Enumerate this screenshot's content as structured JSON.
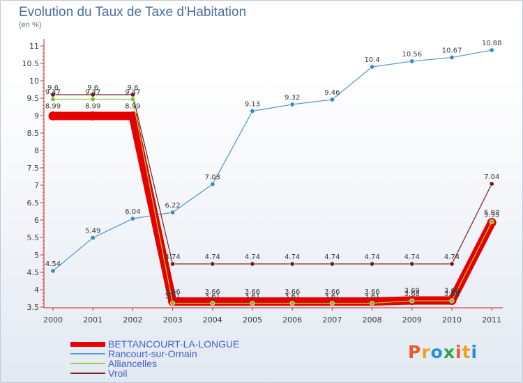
{
  "header": {
    "title": "Evolution du Taux de Taxe d'Habitation",
    "subtitle": "(en %)"
  },
  "brand": {
    "letters": [
      "P",
      "r",
      "o",
      "x",
      "i",
      "t",
      "i"
    ],
    "colors": [
      "#e85a2a",
      "#f0a01e",
      "#1e90d8",
      "#2aa84a",
      "#e85a2a",
      "#f0a01e",
      "#1e90d8"
    ]
  },
  "chart_data": {
    "type": "line",
    "title": "Evolution du Taux de Taxe d'Habitation",
    "subtitle": "(en %)",
    "xlabel": "",
    "ylabel": "",
    "x": [
      "2000",
      "2001",
      "2002",
      "2003",
      "2004",
      "2005",
      "2006",
      "2007",
      "2008",
      "2009",
      "2010",
      "2011"
    ],
    "y_ticks": [
      "3.5",
      "4",
      "4.5",
      "5",
      "5.5",
      "6",
      "6.5",
      "7",
      "7.5",
      "8",
      "8.5",
      "9",
      "9.5",
      "10",
      "10.5",
      "11"
    ],
    "ylim": [
      3.5,
      11.1
    ],
    "grid": false,
    "legend_position": "bottom-left",
    "series": [
      {
        "name": "BETTANCOURT-LA-LONGUE",
        "values": [
          8.99,
          8.99,
          8.99,
          3.66,
          3.66,
          3.66,
          3.66,
          3.66,
          3.66,
          3.69,
          3.69,
          5.93
        ],
        "labels": [
          "8.99",
          "8.99",
          "8.99",
          "3.66",
          "3.66",
          "3.66",
          "3.66",
          "3.66",
          "3.66",
          "3.69",
          "3.69",
          "5.93"
        ],
        "color": "#e60000",
        "style": "thick"
      },
      {
        "name": "Rancourt-sur-Ornain",
        "values": [
          4.54,
          5.49,
          6.04,
          6.22,
          7.03,
          9.13,
          9.32,
          9.46,
          10.4,
          10.56,
          10.67,
          10.88
        ],
        "labels": [
          "4.54",
          "5.49",
          "6.04",
          "6.22",
          "7.03",
          "9.13",
          "9.32",
          "9.46",
          "10.4",
          "10.56",
          "10.67",
          "10.88"
        ],
        "color": "#5a9ad0",
        "marker_color": "#3a86c8",
        "style": "thin"
      },
      {
        "name": "Alliancelles",
        "values": [
          9.47,
          9.47,
          9.47,
          3.61,
          3.61,
          3.61,
          3.61,
          3.61,
          3.61,
          3.68,
          3.68,
          5.95
        ],
        "labels": [
          "9.47",
          "9.47",
          "9.47",
          "3.61",
          "3.61",
          "3.61",
          "3.61",
          "3.61",
          "3.61",
          "3.68",
          "3.68",
          "5.95"
        ],
        "color": "#9ad040",
        "marker_color": "#7cc030",
        "style": "thin"
      },
      {
        "name": "Vroil",
        "values": [
          9.6,
          9.6,
          9.6,
          4.74,
          4.74,
          4.74,
          4.74,
          4.74,
          4.74,
          4.74,
          4.74,
          7.04
        ],
        "labels": [
          "9.6",
          "9.6",
          "9.6",
          "4.74",
          "4.74",
          "4.74",
          "4.74",
          "4.74",
          "4.74",
          "4.74",
          "4.74",
          "7.04"
        ],
        "color": "#7a2a2a",
        "marker_color": "#6a1e1e",
        "style": "thin"
      }
    ]
  }
}
